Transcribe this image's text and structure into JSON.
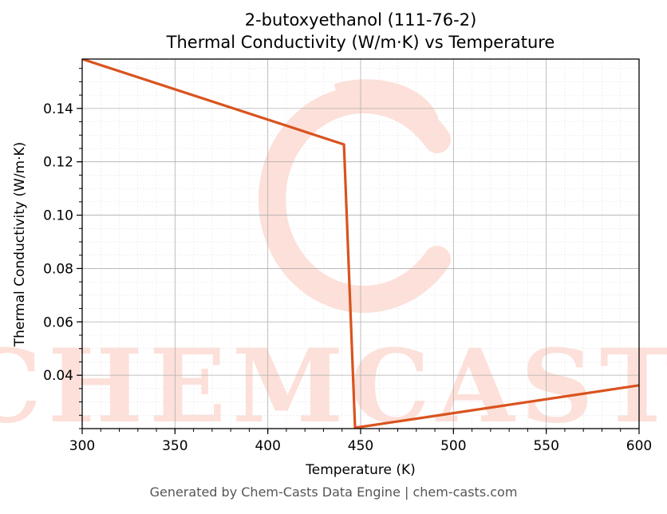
{
  "chart_data": {
    "type": "line",
    "title": "2-butoxyethanol (111-76-2)",
    "subtitle": "Thermal Conductivity (W/m·K) vs Temperature",
    "xlabel": "Temperature (K)",
    "ylabel": "Thermal Conductivity (W/m·K)",
    "xlim": [
      300,
      600
    ],
    "ylim": [
      0.02,
      0.1585
    ],
    "xticks": [
      300,
      350,
      400,
      450,
      500,
      550,
      600
    ],
    "yticks": [
      0.04,
      0.06,
      0.08,
      0.1,
      0.12,
      0.14
    ],
    "grid": true,
    "series": [
      {
        "color": "#d9531e",
        "x": [
          300,
          441,
          447,
          600
        ],
        "y": [
          0.1585,
          0.1265,
          0.0203,
          0.0362
        ]
      }
    ]
  },
  "watermark": {
    "text": "CHEMCASTS",
    "color": "#fde0d9"
  },
  "footer": "Generated by Chem-Casts Data Engine | chem-casts.com"
}
